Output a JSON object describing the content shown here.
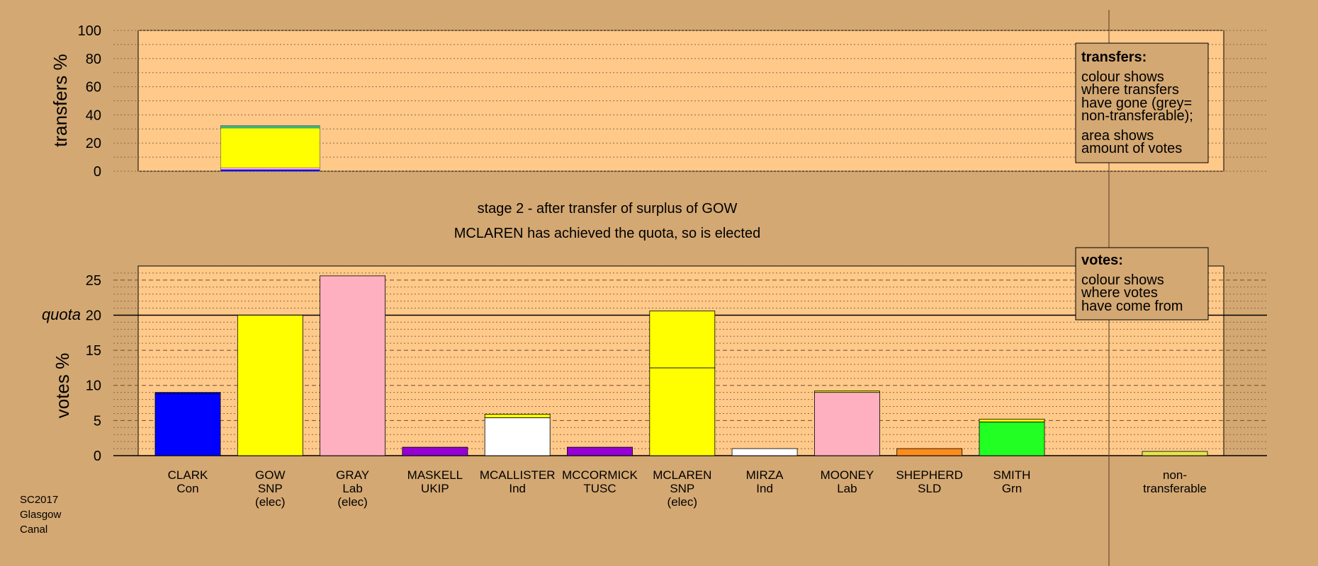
{
  "chart_data": [
    {
      "type": "bar",
      "panel": "transfers",
      "ylabel": "transfers %",
      "ylim": [
        0,
        100
      ],
      "yticks": [
        0,
        20,
        40,
        60,
        80,
        100
      ],
      "grid": "dotted every 10",
      "bars": [
        {
          "candidate": "GOW",
          "segments": [
            {
              "to": "CLARK",
              "color": "#0000ff",
              "value": 1.0
            },
            {
              "to": "MASKELL",
              "color": "#9400d3",
              "value": 0.4
            },
            {
              "to": "MCALLISTER",
              "color": "#ffffff",
              "value": 0.6
            },
            {
              "to": "MCCORMICK",
              "color": "#9400d3",
              "value": 0.4
            },
            {
              "to": "MCLAREN",
              "color": "#ffff00",
              "value": 28.0
            },
            {
              "to": "SMITH",
              "color": "#3cb371",
              "value": 2.0
            }
          ]
        }
      ],
      "legend": {
        "title": "transfers:",
        "lines": [
          "colour shows",
          "where transfers",
          "have gone (grey=",
          "non-transferable);",
          "area shows",
          "amount of votes"
        ]
      }
    },
    {
      "type": "bar",
      "panel": "votes",
      "ylabel": "votes %",
      "ylim": [
        0,
        27
      ],
      "yticks": [
        0,
        5,
        10,
        15,
        20,
        25
      ],
      "quota": 20,
      "quota_label": "quota",
      "candidates": [
        {
          "name": "CLARK",
          "party": "Con",
          "status": "",
          "segments": [
            {
              "color": "#0000ff",
              "value": 8.8
            },
            {
              "color": "#0000ff",
              "value": 0.2
            }
          ]
        },
        {
          "name": "GOW",
          "party": "SNP",
          "status": "(elec)",
          "segments": [
            {
              "color": "#ffff00",
              "value": 20.0
            }
          ]
        },
        {
          "name": "GRAY",
          "party": "Lab",
          "status": "(elec)",
          "segments": [
            {
              "color": "#ffb0c0",
              "value": 25.6
            }
          ]
        },
        {
          "name": "MASKELL",
          "party": "UKIP",
          "status": "",
          "segments": [
            {
              "color": "#9400d3",
              "value": 1.2
            }
          ]
        },
        {
          "name": "MCALLISTER",
          "party": "Ind",
          "status": "",
          "segments": [
            {
              "color": "#ffffff",
              "value": 5.4
            },
            {
              "color": "#ffff00",
              "value": 0.5
            }
          ]
        },
        {
          "name": "MCCORMICK",
          "party": "TUSC",
          "status": "",
          "segments": [
            {
              "color": "#9400d3",
              "value": 1.2
            }
          ]
        },
        {
          "name": "MCLAREN",
          "party": "SNP",
          "status": "(elec)",
          "segments": [
            {
              "color": "#ffff00",
              "value": 12.5
            },
            {
              "color": "#ffff00",
              "value": 8.1
            }
          ]
        },
        {
          "name": "MIRZA",
          "party": "Ind",
          "status": "",
          "segments": [
            {
              "color": "#ffffff",
              "value": 1.0
            }
          ]
        },
        {
          "name": "MOONEY",
          "party": "Lab",
          "status": "",
          "segments": [
            {
              "color": "#ffb0c0",
              "value": 9.0
            },
            {
              "color": "#ffff00",
              "value": 0.2
            }
          ]
        },
        {
          "name": "SHEPHERD",
          "party": "SLD",
          "status": "",
          "segments": [
            {
              "color": "#ff8c1a",
              "value": 1.0
            }
          ]
        },
        {
          "name": "SMITH",
          "party": "Grn",
          "status": "",
          "segments": [
            {
              "color": "#22ff22",
              "value": 4.8
            },
            {
              "color": "#ffff00",
              "value": 0.4
            }
          ]
        }
      ],
      "nontransferable": {
        "label1": "non-",
        "label2": "transferable",
        "color": "#e6e64d",
        "value": 0.6
      },
      "legend": {
        "title": "votes:",
        "lines": [
          "colour shows",
          "where votes",
          "have come from"
        ]
      }
    }
  ],
  "stage_text": {
    "line1": "stage 2 - after transfer of surplus of GOW",
    "line2": "MCLAREN has achieved the quota, so is elected"
  },
  "footer": {
    "line1": "SC2017",
    "line2": "Glasgow",
    "line3": "Canal"
  },
  "colors": {
    "background": "#d4a872",
    "panel": "#ffc98a"
  }
}
